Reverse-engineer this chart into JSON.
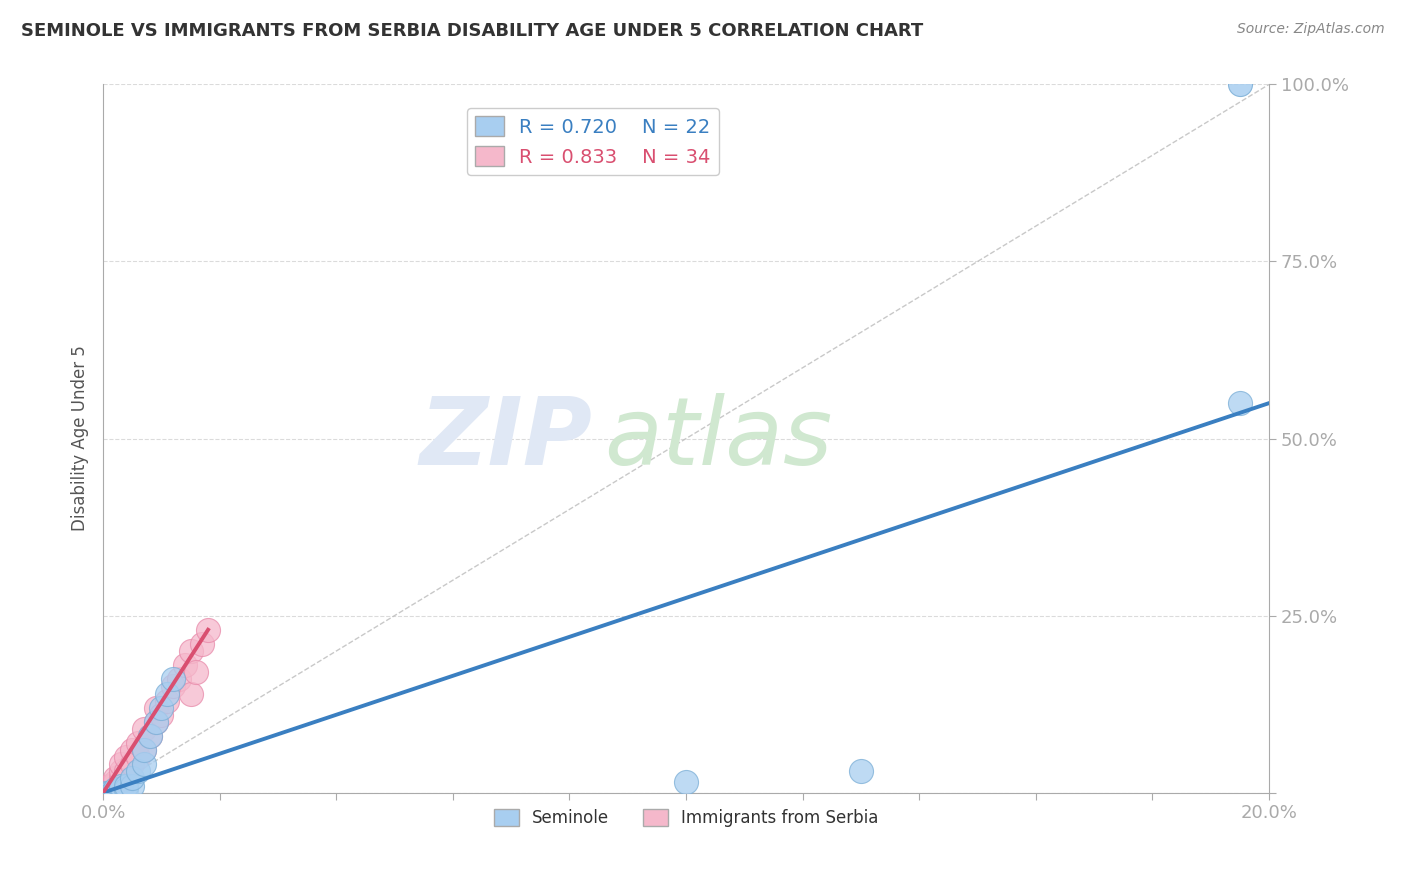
{
  "title": "SEMINOLE VS IMMIGRANTS FROM SERBIA DISABILITY AGE UNDER 5 CORRELATION CHART",
  "source": "Source: ZipAtlas.com",
  "ylabel": "Disability Age Under 5",
  "xlim": [
    0.0,
    0.2
  ],
  "ylim": [
    0.0,
    1.0
  ],
  "xticks": [
    0.0,
    0.02,
    0.04,
    0.06,
    0.08,
    0.1,
    0.12,
    0.14,
    0.16,
    0.18,
    0.2
  ],
  "xtick_labels": [
    "0.0%",
    "",
    "",
    "",
    "",
    "",
    "",
    "",
    "",
    "",
    "20.0%"
  ],
  "yticks": [
    0.0,
    0.25,
    0.5,
    0.75,
    1.0
  ],
  "ytick_labels": [
    "",
    "25.0%",
    "50.0%",
    "75.0%",
    "100.0%"
  ],
  "seminole_R": 0.72,
  "seminole_N": 22,
  "serbia_R": 0.833,
  "serbia_N": 34,
  "seminole_color": "#a8cef0",
  "serbia_color": "#f5b8cb",
  "seminole_edge_color": "#7aaed6",
  "serbia_edge_color": "#e88aaa",
  "seminole_line_color": "#3a7fc1",
  "serbia_line_color": "#d94f70",
  "ref_line_color": "#bbbbbb",
  "background_color": "#ffffff",
  "grid_color": "#cccccc",
  "tick_label_color": "#5599dd",
  "title_color": "#333333",
  "source_color": "#888888",
  "ylabel_color": "#555555",
  "watermark_zip_color": "#e0e8f5",
  "watermark_atlas_color": "#d0e8d0",
  "seminole_x": [
    0.0005,
    0.001,
    0.0015,
    0.002,
    0.002,
    0.003,
    0.003,
    0.004,
    0.004,
    0.005,
    0.005,
    0.006,
    0.007,
    0.007,
    0.008,
    0.009,
    0.01,
    0.011,
    0.012,
    0.1,
    0.13,
    0.195
  ],
  "seminole_y": [
    0.0,
    0.0,
    0.0,
    0.0,
    0.005,
    0.005,
    0.01,
    0.005,
    0.01,
    0.01,
    0.02,
    0.03,
    0.04,
    0.06,
    0.08,
    0.1,
    0.12,
    0.14,
    0.16,
    0.015,
    0.03,
    0.55
  ],
  "serbia_x": [
    0.0,
    0.0005,
    0.001,
    0.001,
    0.001,
    0.0015,
    0.002,
    0.002,
    0.002,
    0.003,
    0.003,
    0.003,
    0.003,
    0.004,
    0.004,
    0.005,
    0.005,
    0.006,
    0.006,
    0.007,
    0.007,
    0.008,
    0.009,
    0.009,
    0.01,
    0.011,
    0.012,
    0.013,
    0.014,
    0.015,
    0.015,
    0.016,
    0.017,
    0.018
  ],
  "serbia_y": [
    0.0,
    0.0,
    0.0,
    0.005,
    0.01,
    0.01,
    0.005,
    0.015,
    0.02,
    0.01,
    0.02,
    0.03,
    0.04,
    0.03,
    0.05,
    0.04,
    0.06,
    0.05,
    0.07,
    0.06,
    0.09,
    0.08,
    0.1,
    0.12,
    0.11,
    0.13,
    0.15,
    0.16,
    0.18,
    0.14,
    0.2,
    0.17,
    0.21,
    0.23
  ],
  "seminole_line_x": [
    0.0,
    0.2
  ],
  "seminole_line_y": [
    0.0,
    0.55
  ],
  "serbia_line_x": [
    0.0,
    0.018
  ],
  "serbia_line_y": [
    0.0,
    0.23
  ],
  "ref_line_x": [
    0.0,
    0.2
  ],
  "ref_line_y": [
    0.0,
    1.0
  ]
}
